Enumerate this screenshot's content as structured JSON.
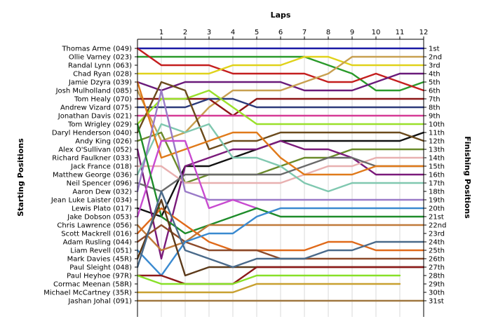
{
  "chart_data": {
    "type": "line",
    "title": "",
    "top_axis_label": "Laps",
    "left_axis_label": "Starting Positions",
    "right_axis_label": "Finishing Positions",
    "laps": [
      1,
      2,
      3,
      4,
      5,
      6,
      7,
      8,
      9,
      10,
      11,
      12
    ],
    "starting_positions": [
      "Thomas Arme (049)",
      "Ollie Varney (023)",
      "Randal Lynn (063)",
      "Chad Ryan (028)",
      "Jamie Dzyra (039)",
      "Josh Mulholland (085)",
      "Tom Healy (070)",
      "Andrew Vizard (075)",
      "Jonathan Davis (021)",
      "Tom Wrigley (029)",
      "Daryl Henderson (040)",
      "Andy King (026)",
      "Alex O'Sullivan (052)",
      "Richard Faulkner (033)",
      "Jack France (018)",
      "Matthew George (036)",
      "Neil Spencer (096)",
      "Aaron Dew (032)",
      "Jean Luke Laister (034)",
      "Lewis Plato (017)",
      "Jake Dobson (053)",
      "Chris Lawrence (056)",
      "Scott Mackrell (016)",
      "Adam Rusling (044)",
      "Liam Revell (051)",
      "Mark Davies (45R)",
      "Paul Sleight (048)",
      "Paul Heyhoe (97R)",
      "Cormac Meenan (58R)",
      "Michael McCartney (35R)",
      "Jashan Johal (091)"
    ],
    "finishing_positions": [
      "1st",
      "2nd",
      "3rd",
      "4th",
      "5th",
      "6th",
      "7th",
      "8th",
      "9th",
      "10th",
      "11th",
      "12th",
      "13th",
      "14th",
      "15th",
      "16th",
      "17th",
      "18th",
      "19th",
      "20th",
      "21st",
      "22nd",
      "23rd",
      "24th",
      "25th",
      "26th",
      "27th",
      "28th",
      "29th",
      "30th",
      "31st"
    ],
    "series": [
      {
        "color": "#1a1aa6",
        "positions": [
          1,
          1,
          1,
          1,
          1,
          1,
          1,
          1,
          1,
          1,
          1,
          1,
          1
        ]
      },
      {
        "color": "#2a9a2a",
        "positions": [
          2,
          2,
          2,
          2,
          2,
          2,
          2,
          2,
          3,
          4,
          6,
          6,
          5
        ]
      },
      {
        "color": "#c41e1e",
        "positions": [
          1,
          3,
          3,
          3,
          4,
          4,
          4,
          4,
          5,
          5,
          4,
          5,
          6
        ]
      },
      {
        "color": "#e0d21a",
        "positions": [
          4,
          4,
          4,
          4,
          3,
          3,
          3,
          2,
          2,
          3,
          3,
          3,
          3
        ]
      },
      {
        "color": "#6a1a7a",
        "positions": [
          5,
          6,
          5,
          5,
          5,
          5,
          5,
          6,
          6,
          6,
          5,
          4,
          4
        ]
      },
      {
        "color": "#c8a050",
        "positions": [
          6,
          12,
          11,
          8,
          6,
          6,
          6,
          5,
          4,
          2,
          2,
          2,
          2
        ]
      },
      {
        "color": "#8c1616",
        "positions": [
          7,
          7,
          7,
          7,
          9,
          7,
          7,
          7,
          7,
          7,
          7,
          7,
          7
        ]
      },
      {
        "color": "#2c3a7a",
        "positions": [
          8,
          8,
          8,
          7,
          7,
          8,
          8,
          8,
          8,
          8,
          8,
          8,
          8
        ]
      },
      {
        "color": "#d63a96",
        "positions": [
          9,
          9,
          9,
          9,
          9,
          9,
          9,
          9,
          9,
          9,
          9,
          9,
          9
        ]
      },
      {
        "color": "#9ae02a",
        "positions": [
          10,
          7,
          7,
          6,
          8,
          10,
          10,
          10,
          10,
          10,
          10,
          10,
          10
        ]
      },
      {
        "color": "#111111",
        "positions": [
          20,
          21,
          15,
          15,
          14,
          13,
          12,
          12,
          12,
          12,
          12,
          12,
          11
        ]
      },
      {
        "color": "#6b4a1c",
        "positions": [
          11,
          5,
          6,
          13,
          12,
          12,
          11,
          11,
          11,
          11,
          11,
          11,
          12
        ]
      },
      {
        "color": "#6a8a2a",
        "positions": [
          12,
          11,
          17,
          16,
          16,
          16,
          15,
          14,
          14,
          13,
          13,
          13,
          13
        ]
      },
      {
        "color": "#7a1a7a",
        "positions": [
          13,
          26,
          15,
          14,
          13,
          13,
          12,
          13,
          13,
          14,
          16,
          16,
          16
        ]
      },
      {
        "color": "#e8b0b0",
        "positions": [
          15,
          15,
          17,
          17,
          17,
          17,
          17,
          16,
          15,
          15,
          14,
          14,
          14
        ]
      },
      {
        "color": "#80c8b0",
        "positions": [
          16,
          10,
          11,
          10,
          14,
          14,
          15,
          17,
          18,
          17,
          17,
          17,
          17
        ]
      },
      {
        "color": "#6a6a6a",
        "positions": [
          17,
          18,
          16,
          16,
          16,
          16,
          16,
          15,
          14,
          14,
          15,
          15,
          15
        ]
      },
      {
        "color": "#e07a1a",
        "positions": [
          5,
          14,
          13,
          12,
          11,
          11,
          14,
          16,
          16,
          16,
          15,
          15,
          15
        ]
      },
      {
        "color": "#9a7ac8",
        "positions": [
          18,
          6,
          18,
          19,
          19,
          19,
          19,
          19,
          19,
          19,
          19,
          19,
          19
        ]
      },
      {
        "color": "#c84ad0",
        "positions": [
          21,
          12,
          12,
          20,
          19,
          20
        ]
      },
      {
        "color": "#1e8c2a",
        "positions": [
          10,
          21,
          23,
          22,
          21,
          20,
          21,
          21,
          21,
          21,
          21,
          21,
          21
        ]
      },
      {
        "color": "#c07a3a",
        "positions": [
          22,
          25,
          24,
          22,
          22,
          22,
          22,
          22,
          22,
          22,
          22,
          22,
          22
        ]
      },
      {
        "color": "#e06a1a",
        "positions": [
          23,
          20,
          22,
          24,
          25,
          25,
          25,
          25,
          24,
          24,
          25,
          25,
          25
        ]
      },
      {
        "color": "#8c4a2a",
        "positions": [
          24,
          22,
          24,
          25,
          25,
          25,
          26,
          26,
          26,
          26,
          26,
          26,
          26
        ]
      },
      {
        "color": "#3a8ad0",
        "positions": [
          25,
          28,
          24,
          23,
          23,
          21,
          20,
          20,
          20,
          20,
          20,
          20,
          20
        ]
      },
      {
        "color": "#5c3a1a",
        "positions": [
          26,
          19,
          28,
          27,
          27,
          27,
          27,
          27,
          27,
          27,
          27,
          27,
          27
        ]
      },
      {
        "color": "#4a6a8a",
        "positions": [
          27,
          18,
          25,
          26,
          27,
          26,
          26,
          26,
          25,
          25,
          24,
          24,
          24
        ]
      },
      {
        "color": "#8c1a1a",
        "positions": [
          28,
          28,
          29,
          29,
          29,
          27,
          27,
          27,
          27,
          27,
          27,
          27,
          27
        ]
      },
      {
        "color": "#88e028",
        "positions": [
          28,
          29,
          29,
          29,
          29,
          28,
          28,
          28,
          28,
          28,
          28,
          28
        ]
      },
      {
        "color": "#c8a030",
        "positions": [
          30,
          30,
          30,
          30,
          30,
          29,
          29,
          29,
          29,
          29,
          29,
          29
        ]
      },
      {
        "color": "#a07840",
        "positions": [
          31,
          31,
          31,
          31,
          31,
          31,
          31,
          31,
          31,
          31,
          31,
          31,
          31
        ]
      }
    ]
  }
}
